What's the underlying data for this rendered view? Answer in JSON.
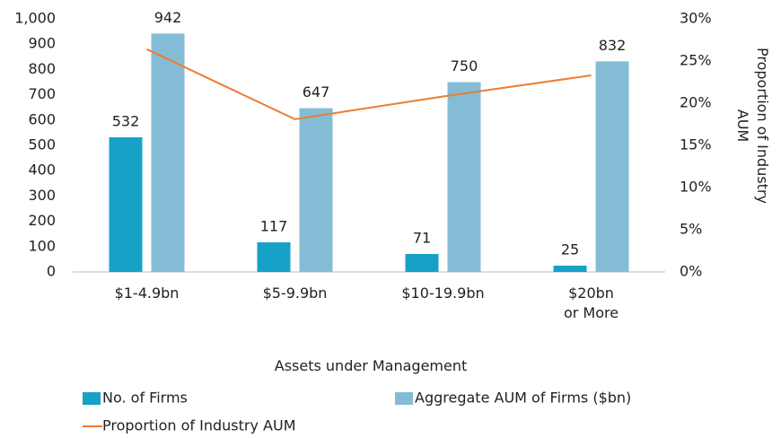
{
  "chart_data": {
    "type": "bar",
    "x_label": "Assets under Management",
    "y2_label": "Proportion of Industry AUM",
    "categories": [
      "$1-4.9bn",
      "$5-9.9bn",
      "$10-19.9bn",
      "$20bn\nor More"
    ],
    "series": [
      {
        "name": "No. of Firms",
        "color": "#17a1c7",
        "values": [
          532,
          117,
          71,
          25
        ]
      },
      {
        "name": "Aggregate AUM of Firms ($bn)",
        "color": "#85bcd5",
        "values": [
          942,
          647,
          750,
          832
        ]
      },
      {
        "name": "Proportion of Industry AUM",
        "color": "#ed7d31",
        "type": "line",
        "axis": "y2",
        "values": [
          26.4,
          18.1,
          20.8,
          23.3
        ]
      }
    ],
    "ylim": [
      0,
      1000
    ],
    "yticks": [
      0,
      100,
      200,
      300,
      400,
      500,
      600,
      700,
      800,
      900,
      {
        "value": 1000,
        "label": "1,000"
      }
    ],
    "y2lim": [
      0,
      30
    ],
    "y2ticks": [
      {
        "value": 0,
        "label": "0%"
      },
      {
        "value": 5,
        "label": "5%"
      },
      {
        "value": 10,
        "label": "10%"
      },
      {
        "value": 15,
        "label": "15%"
      },
      {
        "value": 20,
        "label": "20%"
      },
      {
        "value": 25,
        "label": "25%"
      },
      {
        "value": 30,
        "label": "30%"
      }
    ],
    "grid": false,
    "legend": "bottom"
  }
}
